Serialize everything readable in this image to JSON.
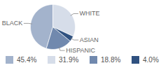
{
  "chart_data": {
    "type": "pie",
    "categories": [
      "BLACK",
      "WHITE",
      "HISPANIC",
      "ASIAN"
    ],
    "values": [
      45.4,
      31.9,
      18.8,
      4.0
    ],
    "value_labels": [
      "45.4%",
      "31.9%",
      "18.8%",
      "4.0%"
    ],
    "colors": [
      "#a3b3cc",
      "#d6dde9",
      "#7189ae",
      "#2f5180"
    ],
    "legend": "bottom"
  }
}
